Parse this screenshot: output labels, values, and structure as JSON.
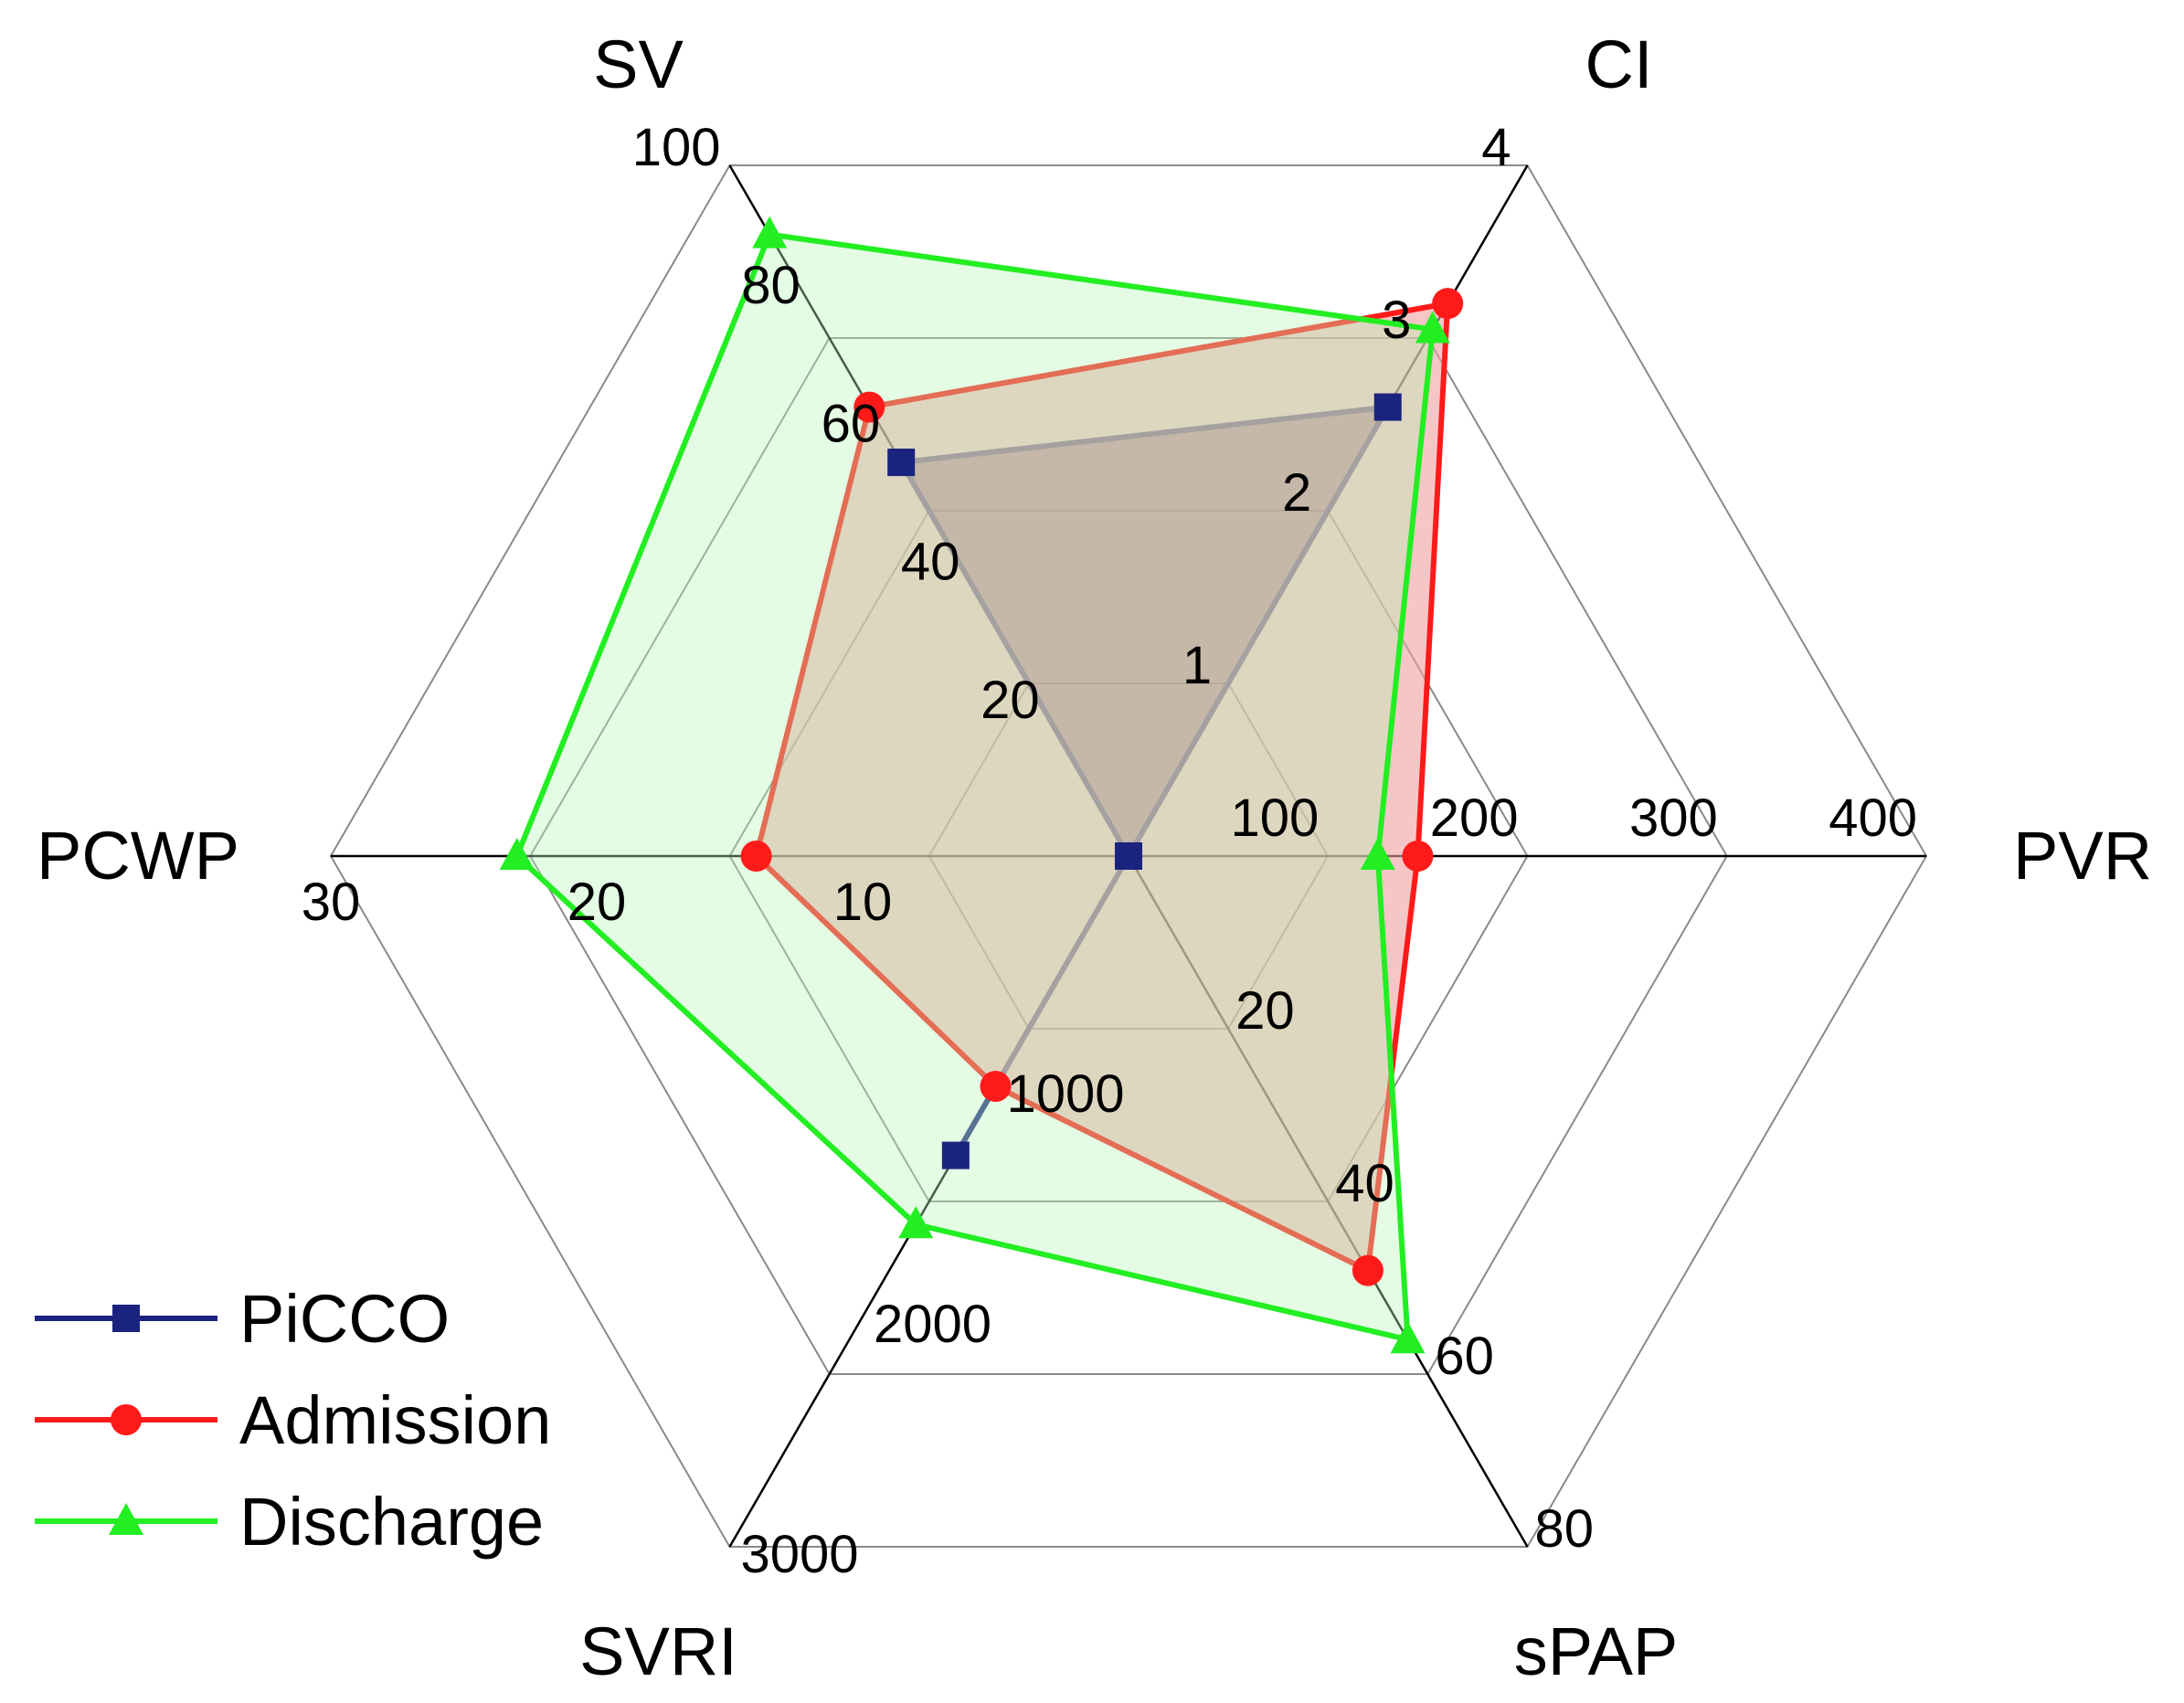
{
  "chart_data": {
    "type": "radar",
    "axes": [
      {
        "name": "CI",
        "ticks": [
          "1",
          "2",
          "3",
          "4"
        ],
        "max": 4
      },
      {
        "name": "PVR",
        "ticks": [
          "100",
          "200",
          "300",
          "400"
        ],
        "max": 400
      },
      {
        "name": "sPAP",
        "ticks": [
          "20",
          "40",
          "60",
          "80"
        ],
        "max": 80
      },
      {
        "name": "SVRI",
        "ticks": [
          "1000",
          "2000",
          "3000"
        ],
        "max": 3000
      },
      {
        "name": "PCWP",
        "ticks": [
          "10",
          "20",
          "30"
        ],
        "max": 30
      },
      {
        "name": "SV",
        "ticks": [
          "20",
          "40",
          "60",
          "80",
          "100"
        ],
        "max": 100
      }
    ],
    "series": [
      {
        "name": "PiCCO",
        "color": "#1a237e",
        "fill": "#3f0f4f",
        "fill_opacity": 0.52,
        "marker": "square",
        "values": [
          2.6,
          0,
          0,
          1300,
          0,
          57
        ]
      },
      {
        "name": "Admission",
        "color": "#ff1a1a",
        "fill": "#f0a0a0",
        "fill_opacity": 0.6,
        "marker": "circle",
        "values": [
          3.2,
          145,
          48,
          1000,
          14,
          65
        ]
      },
      {
        "name": "Discharge",
        "color": "#22ee22",
        "fill": "#b8f5b8",
        "fill_opacity": 0.38,
        "marker": "triangle",
        "values": [
          3.05,
          125,
          56,
          1600,
          23,
          90
        ]
      }
    ]
  }
}
